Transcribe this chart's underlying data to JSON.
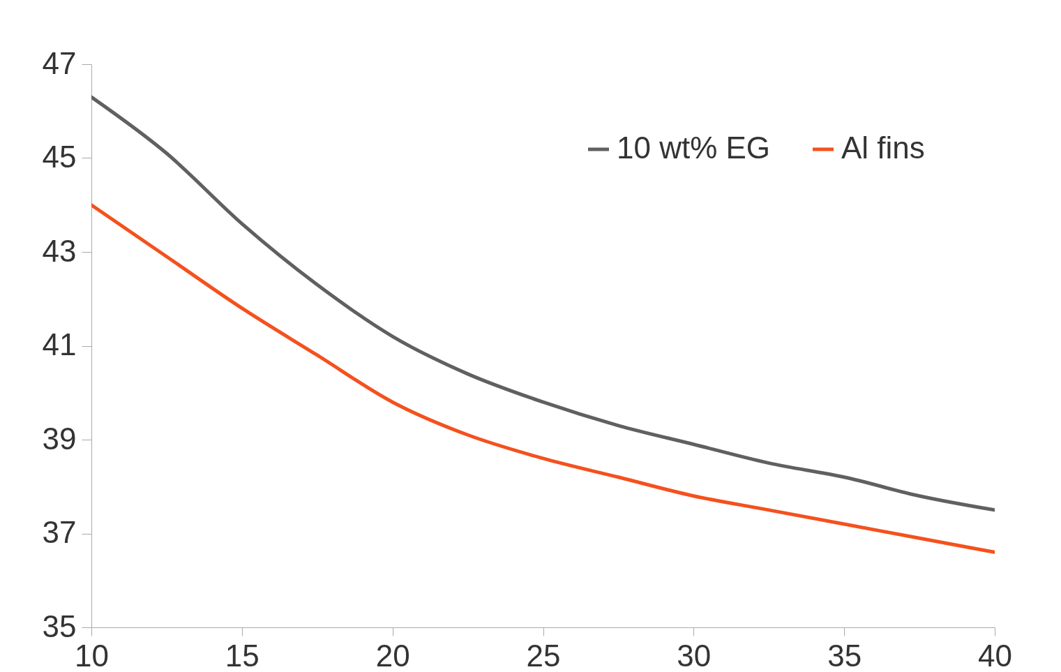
{
  "chart_data": {
    "type": "line",
    "x": [
      10,
      12.5,
      15,
      17.5,
      20,
      22.5,
      25,
      27.5,
      30,
      32.5,
      35,
      37.5,
      40
    ],
    "series": [
      {
        "name": "10 wt% EG",
        "color": "#606060",
        "values": [
          46.3,
          45.1,
          43.6,
          42.3,
          41.2,
          40.4,
          39.8,
          39.3,
          38.9,
          38.5,
          38.2,
          37.8,
          37.5
        ]
      },
      {
        "name": "Al fins",
        "color": "#f4511e",
        "values": [
          44.0,
          42.9,
          41.8,
          40.8,
          39.8,
          39.1,
          38.6,
          38.2,
          37.8,
          37.5,
          37.2,
          36.9,
          36.6
        ]
      }
    ],
    "xlim": [
      10,
      40
    ],
    "xticks": [
      10,
      15,
      20,
      25,
      30,
      35,
      40
    ],
    "ylim": [
      35,
      47
    ],
    "yticks": [
      35,
      37,
      39,
      41,
      43,
      45,
      47
    ],
    "legend": "top right"
  }
}
